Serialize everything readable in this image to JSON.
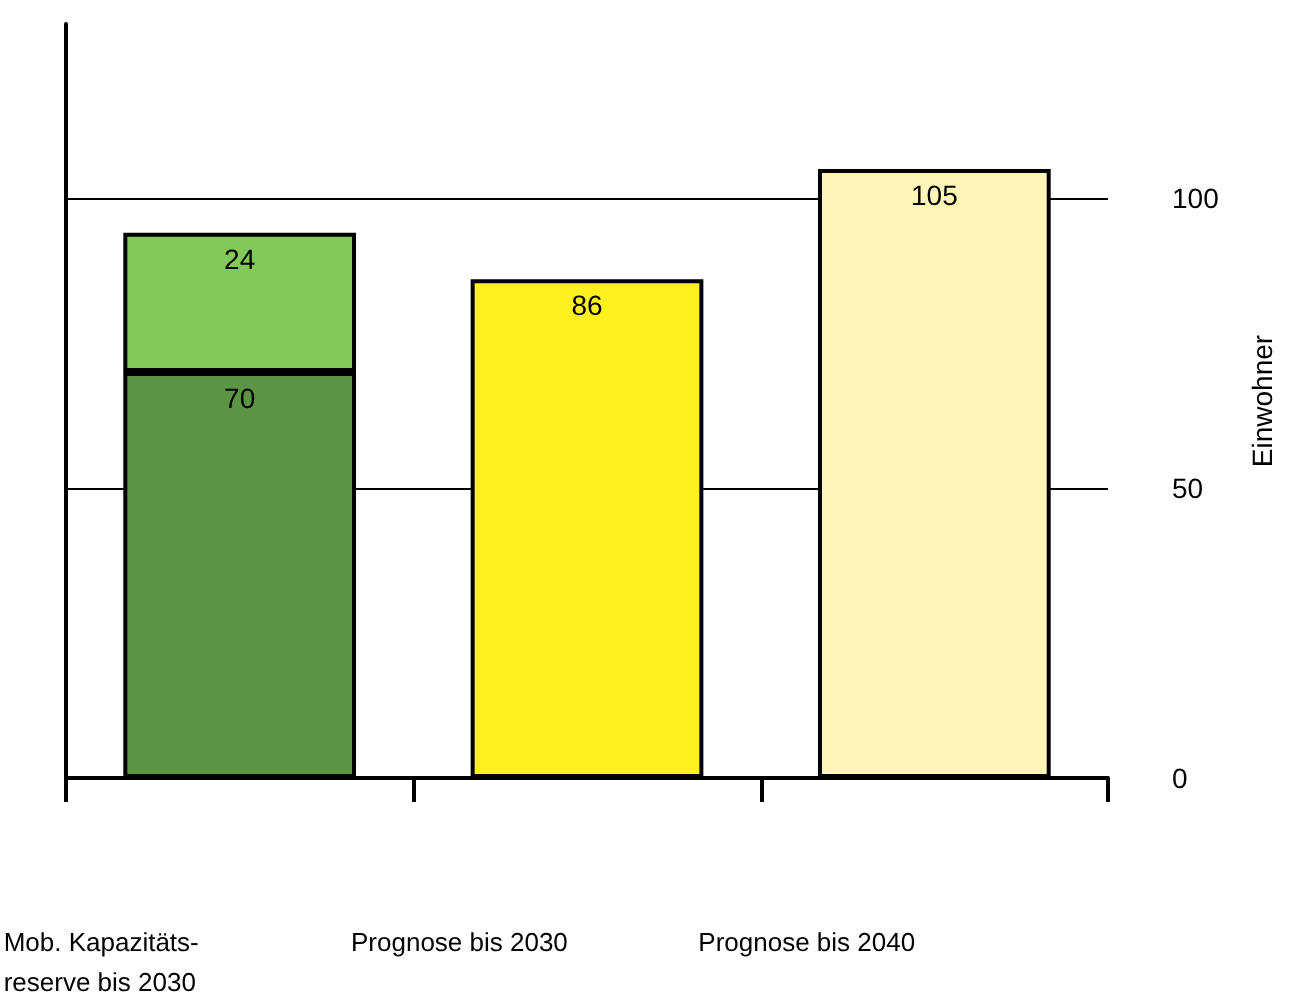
{
  "chart_data": {
    "type": "bar",
    "stacked": true,
    "ylabel": "Einwohner",
    "categories": [
      "Mob. Kapazitäts-\nreserve bis 2030",
      "Prognose bis 2030",
      "Prognose bis 2040"
    ],
    "series": [
      {
        "colors": [
          "#5b9444",
          "#fff01e",
          "#fff5b9"
        ],
        "values": [
          70,
          86,
          105
        ]
      },
      {
        "colors": [
          "#82c85a",
          null,
          null
        ],
        "values": [
          24,
          null,
          null
        ]
      }
    ],
    "ylim": [
      0,
      130
    ],
    "yticks": [
      0,
      50,
      100
    ],
    "grid": "y",
    "data_labels": true
  }
}
